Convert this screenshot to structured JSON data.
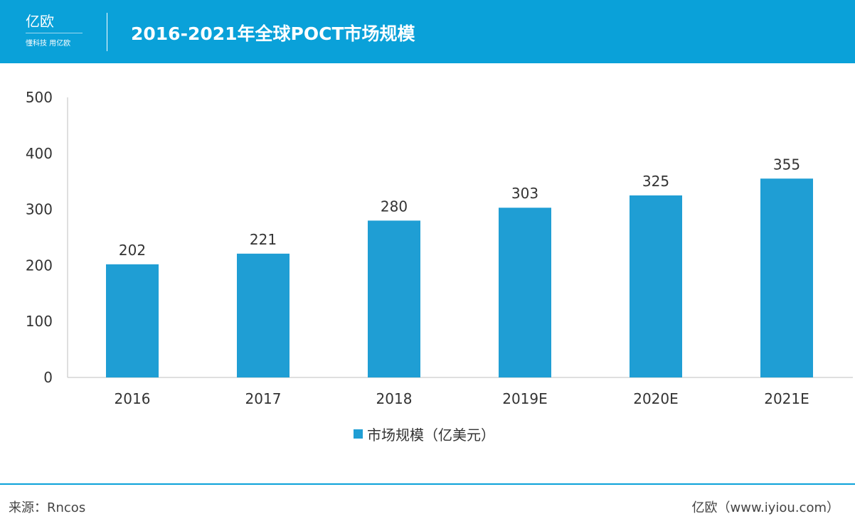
{
  "header": {
    "logo_text": "亿欧",
    "logo_tagline": "懂科技 用亿欧",
    "title": "2016-2021年全球POCT市场规模"
  },
  "chart_data": {
    "type": "bar",
    "title": "2016-2021年全球POCT市场规模",
    "categories": [
      "2016",
      "2017",
      "2018",
      "2019E",
      "2020E",
      "2021E"
    ],
    "series": [
      {
        "name": "市场规模（亿美元）",
        "values": [
          202,
          221,
          280,
          303,
          325,
          355
        ],
        "color": "#1f9ed4"
      }
    ],
    "ylim": [
      0,
      500
    ],
    "yticks": [
      0,
      100,
      200,
      300,
      400,
      500
    ],
    "grid": false,
    "legend": "bottom",
    "data_labels": true
  },
  "footer": {
    "source": "来源：Rncos",
    "credit": "亿欧（www.iyiou.com）"
  }
}
